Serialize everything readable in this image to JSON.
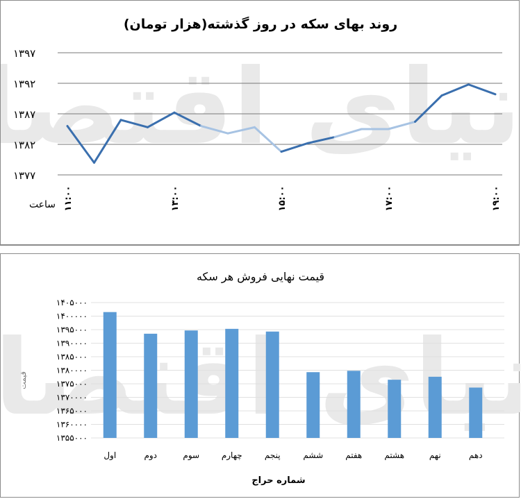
{
  "chart_data": [
    {
      "type": "line",
      "title": "روند بهای سکه در روز گذشته(هزار تومان)",
      "xlabel": "ساعت",
      "ylabel": "",
      "ylim": [
        1377,
        1397
      ],
      "yticks": [
        "۱۳۹۷",
        "۱۳۹۲",
        "۱۳۸۷",
        "۱۳۸۲",
        "۱۳۷۷"
      ],
      "ytick_values": [
        1397,
        1392,
        1387,
        1382,
        1377
      ],
      "xtick_labels": [
        "۱۱:۰۰",
        "۱۳:۰۰",
        "۱۵:۰۰",
        "۱۷:۰۰",
        "۱۹:۰۰"
      ],
      "xtick_index": [
        0,
        4,
        8,
        12,
        16
      ],
      "series": [
        {
          "values": [
            1385,
            1379,
            1386,
            1384.8,
            1387.2,
            1385,
            1383.8,
            1384.8,
            1380.8,
            1382.2,
            1383.2,
            1384.5,
            1384.5,
            1385.7,
            1390,
            1391.8,
            1390.2
          ]
        }
      ],
      "colors": {
        "dark": "#3a6fae",
        "light": "#a7c3e3",
        "grid": "#777777"
      },
      "grid": true
    },
    {
      "type": "bar",
      "title": "قیمت نهایی فروش هر سکه",
      "xlabel": "شماره حراج",
      "ylabel": "قیمت",
      "ylim": [
        1355000,
        1405000
      ],
      "yticks": [
        "۱۴۰۵۰۰۰",
        "۱۴۰۰۰۰۰",
        "۱۳۹۵۰۰۰",
        "۱۳۹۰۰۰۰",
        "۱۳۸۵۰۰۰",
        "۱۳۸۰۰۰۰",
        "۱۳۷۵۰۰۰",
        "۱۳۷۰۰۰۰",
        "۱۳۶۵۰۰۰",
        "۱۳۶۰۰۰۰",
        "۱۳۵۵۰۰۰"
      ],
      "ytick_values": [
        1405000,
        1400000,
        1395000,
        1390000,
        1385000,
        1380000,
        1375000,
        1370000,
        1365000,
        1360000,
        1355000
      ],
      "categories": [
        "اول",
        "دوم",
        "سوم",
        "چهارم",
        "پنجم",
        "ششم",
        "هفتم",
        "هشتم",
        "نهم",
        "دهم"
      ],
      "values": [
        1401500,
        1393500,
        1394700,
        1395300,
        1394300,
        1379300,
        1379800,
        1376500,
        1377600,
        1373600
      ],
      "colors": {
        "bar": "#5b9bd5",
        "grid": "#e0e0e0"
      },
      "grid": true
    }
  ],
  "watermark": "دنیای اقتصاد"
}
